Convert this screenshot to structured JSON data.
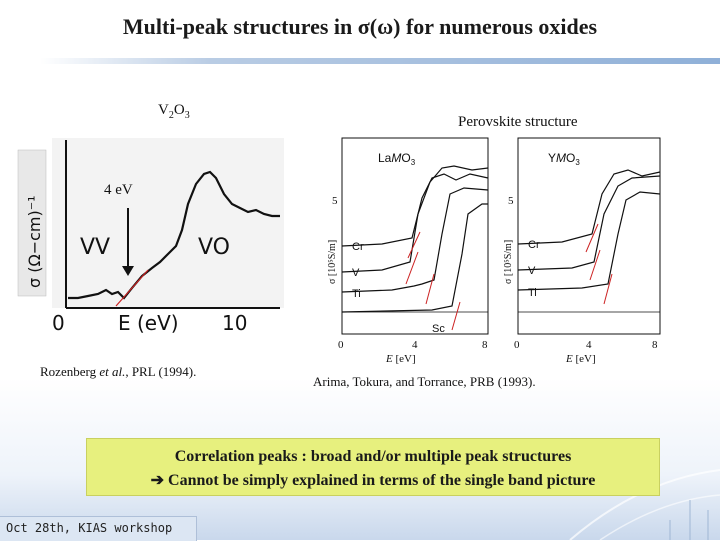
{
  "slide": {
    "title": "Multi-peak structures in σ(ω) for numerous oxides",
    "label_v2o3_prefix": "V",
    "label_v2o3_sub1": "2",
    "label_v2o3_mid": "O",
    "label_v2o3_sub2": "3",
    "label_perovskite": "Perovskite structure",
    "label_4ev": "4 eV",
    "citation_left_pre": "Rozenberg ",
    "citation_left_em": "et al.",
    "citation_left_post": ", PRL (1994).",
    "citation_right": "Arima, Tokura, and Torrance, PRB (1993).",
    "box_line1": "Correlation peaks : broad and/or multiple peak structures",
    "box_arrow": "➔",
    "box_line2": " Cannot be simply explained in terms of the single band picture",
    "footer": "Oct 28th, KIAS workshop",
    "colors": {
      "box_bg": "#e7f07e",
      "rule": "#8fb0d8",
      "fit_red": "#cc2222"
    }
  },
  "left_figure": {
    "ylabel": "σ (Ω−cm)⁻¹",
    "label_vv": "VV",
    "label_vo": "VO",
    "x_tick_0": "0",
    "x_tick_10": "10",
    "xlabel": "E (eV)"
  },
  "right_figure": {
    "lamo3": {
      "title_pre": "La",
      "title_it": "M",
      "title_post": "O",
      "title_sub": "3",
      "ylabel": "σ [10⁵S/m]",
      "y_tick_5": "5",
      "labels": [
        "Cr",
        "V",
        "Ti",
        "Sc"
      ],
      "x_ticks": [
        "0",
        "4",
        "8"
      ],
      "xlabel_it": "E",
      "xlabel_unit": " [eV]"
    },
    "ymo3": {
      "title_pre": "Y",
      "title_it": "M",
      "title_post": "O",
      "title_sub": "3",
      "ylabel": "σ [10⁵S/m]",
      "y_tick_5": "5",
      "labels": [
        "Cr",
        "V",
        "Ti"
      ],
      "x_ticks": [
        "0",
        "4",
        "8"
      ],
      "xlabel_it": "E",
      "xlabel_unit": " [eV]"
    }
  }
}
